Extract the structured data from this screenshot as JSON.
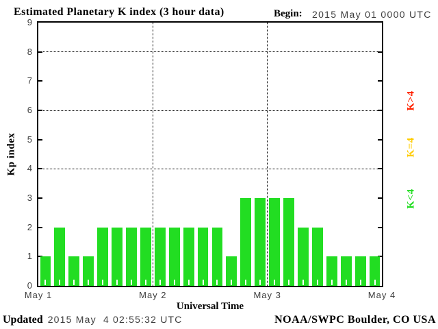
{
  "title": "Estimated Planetary K index (3 hour data)",
  "begin": {
    "label": "Begin:",
    "value": "2015 May 01 0000 UTC"
  },
  "legend": [
    {
      "name": "k-gt-4",
      "label": "K>4",
      "color": "#ff2200"
    },
    {
      "name": "k-eq-4",
      "label": "K=4",
      "color": "#ffcc00"
    },
    {
      "name": "k-lt-4",
      "label": "K<4",
      "color": "#22dd22"
    }
  ],
  "footer": {
    "updated_label": "Updated",
    "updated_value": "2015 May  4 02:55:32 UTC",
    "source": "NOAA/SWPC Boulder, CO USA"
  },
  "chart_data": {
    "type": "bar",
    "title": "Estimated Planetary K index (3 hour data)",
    "xlabel": "Universal Time",
    "ylabel": "Kp index",
    "begin": "2015 May 01 0000 UTC",
    "bar_interval_hours": 3,
    "ylim": [
      0,
      9
    ],
    "yticks": [
      0,
      1,
      2,
      3,
      4,
      5,
      6,
      7,
      8,
      9
    ],
    "gridlines_y": [
      4,
      6,
      8
    ],
    "x_tick_labels": [
      "May 1",
      "May 2",
      "May 3",
      "May 4"
    ],
    "values": [
      1,
      2,
      1,
      1,
      2,
      2,
      2,
      2,
      2,
      2,
      2,
      2,
      2,
      1,
      3,
      3,
      3,
      3,
      2,
      2,
      1,
      1,
      1,
      1
    ],
    "bar_color": "#22dd22",
    "grid": true,
    "legend_position": "right",
    "threshold_colors": {
      "k_lt_4": "#22dd22",
      "k_eq_4": "#ffcc00",
      "k_gt_4": "#ff2200"
    }
  }
}
